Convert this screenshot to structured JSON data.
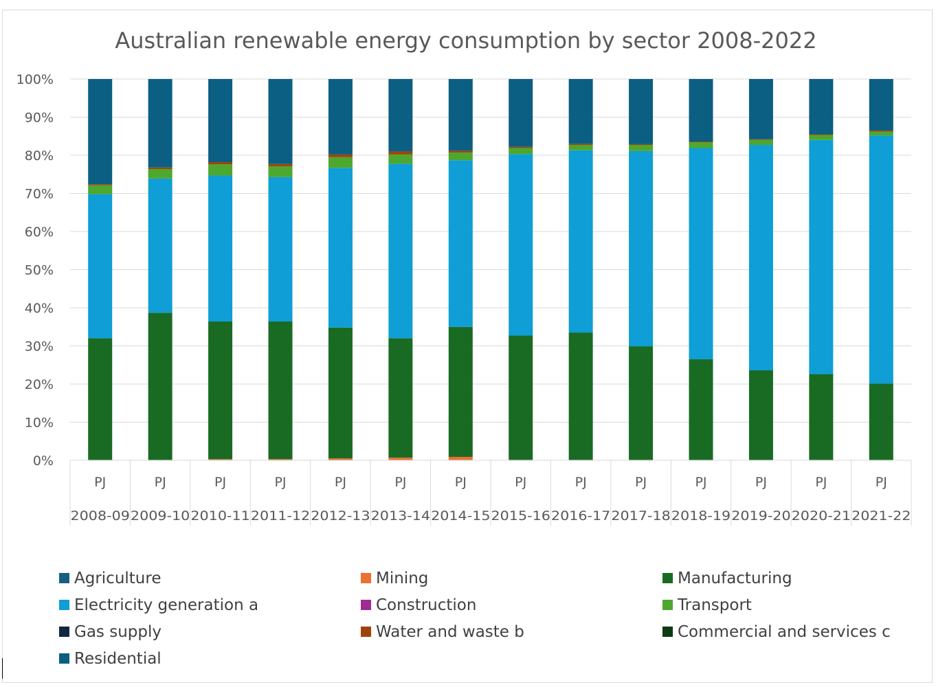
{
  "chart_data": {
    "type": "bar",
    "stacked": true,
    "percent_stacked": true,
    "title": "Australian renewable energy consumption by sector 2008-2022",
    "unit_label": "PJ",
    "categories": [
      "2008-09",
      "2009-10",
      "2010-11",
      "2011-12",
      "2012-13",
      "2013-14",
      "2014-15",
      "2015-16",
      "2016-17",
      "2017-18",
      "2018-19",
      "2019-20",
      "2020-21",
      "2021-22"
    ],
    "y_ticks": [
      "0%",
      "10%",
      "20%",
      "30%",
      "40%",
      "50%",
      "60%",
      "70%",
      "80%",
      "90%",
      "100%"
    ],
    "ylim": [
      0,
      100
    ],
    "grid": true,
    "legend_position": "bottom",
    "series": [
      {
        "name": "Agriculture",
        "color": "#156082",
        "values": [
          0,
          0,
          0,
          0,
          0,
          0,
          0,
          0,
          0,
          0,
          0,
          0,
          0,
          0
        ]
      },
      {
        "name": "Mining",
        "color": "#E97132",
        "values": [
          0.1,
          0.1,
          0.3,
          0.3,
          0.5,
          0.7,
          0.9,
          0.1,
          0.1,
          0.1,
          0.1,
          0.1,
          0.1,
          0.1
        ]
      },
      {
        "name": "Manufacturing",
        "color": "#196B24",
        "values": [
          31.9,
          38.6,
          36.1,
          36.1,
          34.3,
          31.3,
          34.1,
          32.6,
          33.4,
          29.8,
          26.4,
          23.5,
          22.5,
          20.0
        ]
      },
      {
        "name": "Electricity generation a",
        "color": "#0F9ED5",
        "values": [
          37.8,
          35.2,
          38.3,
          37.9,
          41.9,
          45.8,
          43.7,
          47.6,
          47.8,
          51.2,
          55.4,
          59.1,
          61.4,
          65.1
        ]
      },
      {
        "name": "Construction",
        "color": "#A02B93",
        "values": [
          0,
          0,
          0,
          0,
          0,
          0,
          0,
          0,
          0,
          0,
          0,
          0,
          0,
          0
        ]
      },
      {
        "name": "Transport",
        "color": "#4EA72E",
        "values": [
          2.3,
          2.5,
          2.9,
          2.8,
          2.8,
          2.4,
          2.0,
          1.6,
          1.4,
          1.6,
          1.5,
          1.3,
          1.3,
          1.0
        ]
      },
      {
        "name": "Gas supply",
        "color": "#0E2841",
        "values": [
          0,
          0,
          0,
          0,
          0,
          0,
          0,
          0,
          0,
          0,
          0,
          0,
          0,
          0
        ]
      },
      {
        "name": "Water and waste b",
        "color": "#A0430A",
        "values": [
          0.3,
          0.4,
          0.6,
          0.6,
          0.7,
          0.8,
          0.5,
          0.3,
          0.3,
          0.2,
          0.2,
          0.2,
          0.2,
          0.3
        ]
      },
      {
        "name": "Commercial and services c",
        "color": "#0B3B12",
        "values": [
          0,
          0,
          0,
          0,
          0,
          0,
          0,
          0,
          0,
          0,
          0,
          0,
          0,
          0
        ]
      },
      {
        "name": "Residential",
        "color": "#0B5F82",
        "values": [
          27.6,
          23.2,
          21.8,
          22.3,
          19.8,
          19.0,
          18.8,
          17.8,
          17.0,
          17.1,
          16.4,
          15.8,
          14.5,
          13.5
        ]
      }
    ]
  }
}
